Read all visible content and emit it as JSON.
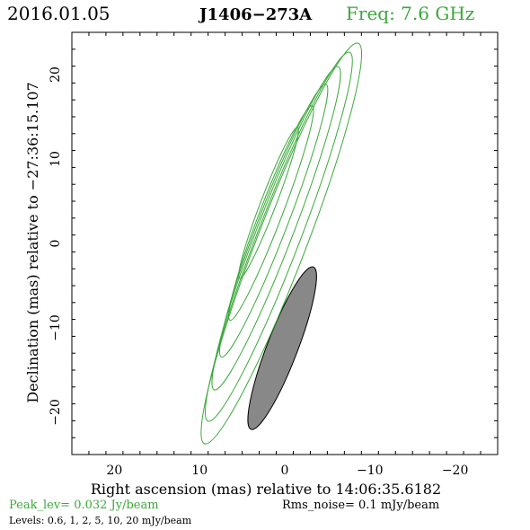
{
  "header": {
    "date": "2016.01.05",
    "source": "J1406−273A",
    "freq": "Freq: 7.6 GHz"
  },
  "colors": {
    "contour": "#3aa83a",
    "beam_fill": "#888888",
    "axes": "#000000",
    "green_text": "#3aa83a"
  },
  "footer": {
    "peak": "Peak_lev=  0.032 Jy/beam",
    "rms": "Rms_noise=  0.1 mJy/beam",
    "levels": "Levels: 0.6,   1,   2,   5,  10,  20 mJy/beam"
  },
  "chart_data": {
    "type": "contour",
    "xlabel": "Right ascension (mas) relative to 14:06:35.6182",
    "ylabel": "Declination (mas) relative to −27:36:15.107",
    "xlim": [
      25,
      -25
    ],
    "ylim": [
      -25,
      25
    ],
    "x_ticks": [
      20,
      10,
      0,
      -10,
      -20
    ],
    "x_tick_labels": [
      "20",
      "10",
      "0",
      "−10",
      "−20"
    ],
    "y_ticks": [
      20,
      10,
      0,
      -10,
      -20
    ],
    "y_tick_labels": [
      "20",
      "10",
      "0",
      "−10",
      "−20"
    ],
    "contour_levels_mJy": [
      0.6,
      1,
      2,
      5,
      10,
      20
    ],
    "contours": [
      {
        "level": 0.6,
        "cx": 0.4,
        "cy": 0.0,
        "a": 25.4,
        "b": 2.9,
        "pa": -21
      },
      {
        "level": 1,
        "cx": 0.7,
        "cy": 0.8,
        "a": 23.4,
        "b": 2.5,
        "pa": -21
      },
      {
        "level": 2,
        "cx": 1.0,
        "cy": 1.8,
        "a": 20.5,
        "b": 2.1,
        "pa": -21
      },
      {
        "level": 5,
        "cx": 1.3,
        "cy": 2.7,
        "a": 17.3,
        "b": 1.7,
        "pa": -21
      },
      {
        "level": 10,
        "cx": 1.6,
        "cy": 3.6,
        "a": 13.6,
        "b": 1.3,
        "pa": -21
      },
      {
        "level": 20,
        "cx": 1.9,
        "cy": 4.8,
        "a": 9.6,
        "b": 0.9,
        "pa": -21
      }
    ],
    "beam": {
      "cx": 0.3,
      "cy": -12.4,
      "a": 10.3,
      "b": 1.8,
      "pa": -21
    }
  }
}
